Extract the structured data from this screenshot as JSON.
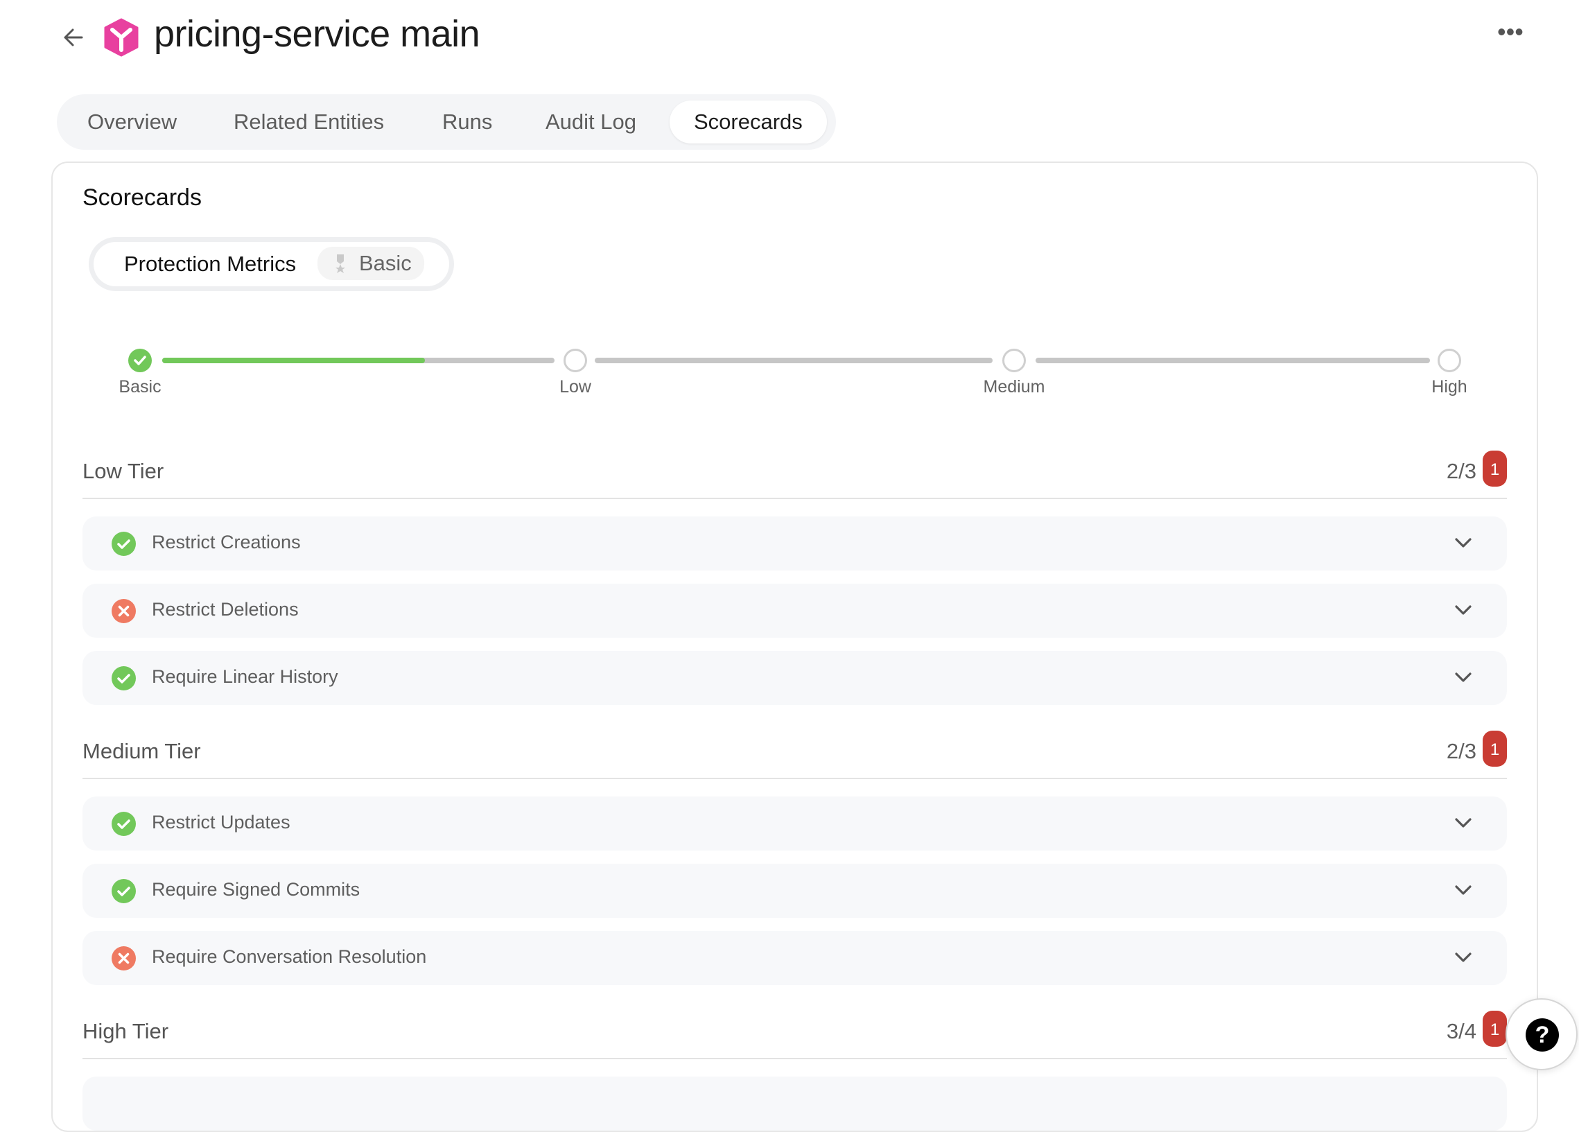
{
  "header": {
    "title": "pricing-service main",
    "back_icon": "arrow-left-icon",
    "logo_icon": "cube-icon",
    "logo_color": "#e8409f",
    "more_icon": "more-horizontal-icon",
    "more_label": "•••"
  },
  "tabs": [
    {
      "label": "Overview"
    },
    {
      "label": "Related Entities"
    },
    {
      "label": "Runs"
    },
    {
      "label": "Audit Log"
    },
    {
      "label": "Scorecards",
      "active": true
    }
  ],
  "scorecards": {
    "title": "Scorecards",
    "selected": {
      "name": "Protection Metrics",
      "level": "Basic",
      "level_icon": "medal-icon"
    },
    "levels": [
      {
        "label": "Basic",
        "achieved": true
      },
      {
        "label": "Low",
        "achieved": false
      },
      {
        "label": "Medium",
        "achieved": false
      },
      {
        "label": "High",
        "achieved": false
      }
    ],
    "progress_to_next_fraction": 0.67,
    "tiers": [
      {
        "name": "Low Tier",
        "count": "2/3",
        "failing": "1",
        "rules": [
          {
            "label": "Restrict Creations",
            "passed": true
          },
          {
            "label": "Restrict Deletions",
            "passed": false
          },
          {
            "label": "Require Linear History",
            "passed": true
          }
        ]
      },
      {
        "name": "Medium Tier",
        "count": "2/3",
        "failing": "1",
        "rules": [
          {
            "label": "Restrict Updates",
            "passed": true
          },
          {
            "label": "Require Signed Commits",
            "passed": true
          },
          {
            "label": "Require Conversation Resolution",
            "passed": false
          }
        ]
      },
      {
        "name": "High Tier",
        "count": "3/4",
        "failing": "1",
        "rules": []
      }
    ]
  },
  "help": {
    "label": "?",
    "icon": "help-icon"
  },
  "colors": {
    "pass": "#72c85a",
    "fail": "#ef7a62",
    "badge": "#c93c33"
  }
}
